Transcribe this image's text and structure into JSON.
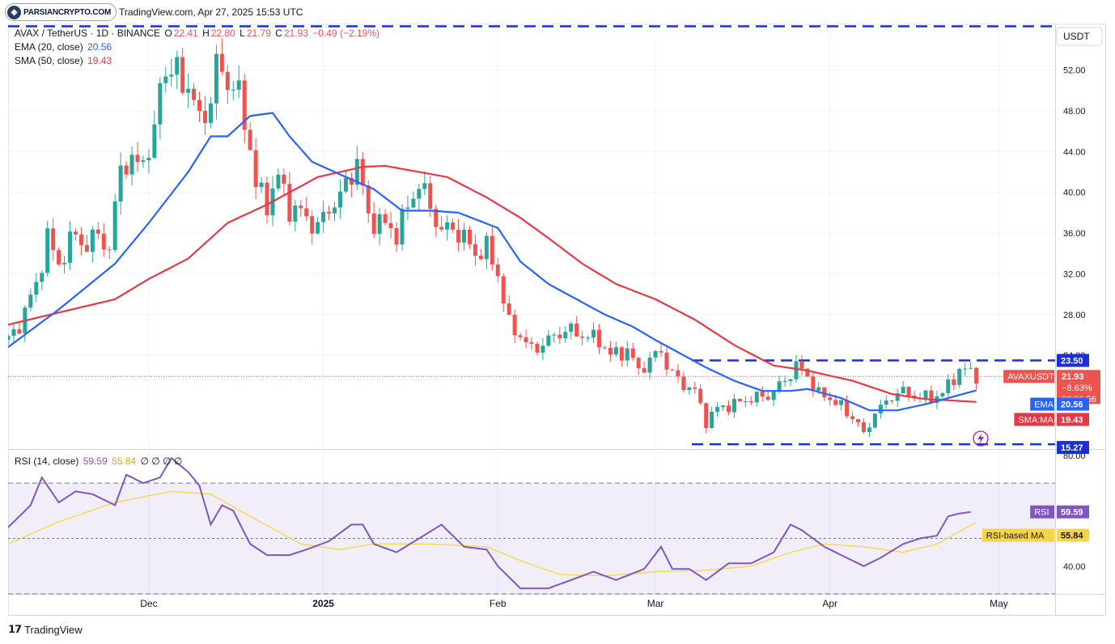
{
  "watermark": {
    "brand": "PARSIANCRYPTO.COM"
  },
  "header": {
    "title": "TradingView.com, Apr 27, 2025 15:53 UTC"
  },
  "legend": {
    "symbol": "AVAX / TetherUS · 1D · BINANCE",
    "o_label": "O",
    "o_val": "22.41",
    "h_label": "H",
    "h_val": "22.80",
    "l_label": "L",
    "l_val": "21.79",
    "c_label": "C",
    "c_val": "21.93",
    "change": "−0.49 (−2.19%)",
    "ema_label": "EMA (20, close)",
    "ema_val": "20.56",
    "sma_label": "SMA (50, close)",
    "sma_val": "19.43",
    "rsi_label": "RSI (14, close)",
    "rsi_val": "59.59",
    "rsi_ma_val": "55.84",
    "rsi_extra": "∅ ∅ ∅ ∅"
  },
  "price_axis": {
    "currency": "USDT"
  },
  "badges": {
    "symbol": "AVAXUSDT",
    "price": "21.93",
    "pct": "−8.63%",
    "countdown": "08:06:56",
    "ema_name": "EMA",
    "ema_val": "20.56",
    "sma_name": "SMA:MA",
    "sma_val": "19.43",
    "res_val": "23.50",
    "sup_val": "15.27",
    "rsi_name": "RSI",
    "rsi_val": "59.59",
    "rsi_ma_name": "RSI-based MA",
    "rsi_ma_val": "55.84"
  },
  "footer": {
    "brand": "TradingView"
  },
  "colors": {
    "up": "#26a69a",
    "down": "#ef5350",
    "ema": "#2962ff",
    "sma": "#e63946",
    "rsi": "#7e57c2",
    "rsi_ma": "#f5d547",
    "level": "#1b2fd6"
  },
  "chart_data": [
    {
      "type": "candlestick",
      "title": "AVAX / TetherUS · 1D · BINANCE",
      "ylabel": "USDT",
      "ylim": [
        14.8,
        56.5
      ],
      "y_ticks": [
        "52.00",
        "48.00",
        "44.00",
        "40.00",
        "36.00",
        "32.00",
        "28.00",
        "24.00"
      ],
      "x_ticks": [
        "Dec",
        "2025",
        "Feb",
        "Mar",
        "Apr",
        "May"
      ],
      "x_tick_dates": [
        "2024-12-01",
        "2025-01-01",
        "2025-02-01",
        "2025-03-01",
        "2025-04-01",
        "2025-05-01"
      ],
      "x_range": [
        "2024-11-06",
        "2025-05-11"
      ],
      "levels": [
        {
          "name": "resistance-top",
          "value": 56.3
        },
        {
          "name": "resistance",
          "value": 23.5
        },
        {
          "name": "support",
          "value": 15.27
        }
      ],
      "last_close": 21.93,
      "series": [
        {
          "name": "AVAXUSDT",
          "style": "candles",
          "anchors": [
            [
              "2024-11-06",
              25.5
            ],
            [
              "2024-11-08",
              27.0
            ],
            [
              "2024-11-11",
              31.0
            ],
            [
              "2024-11-13",
              35.5
            ],
            [
              "2024-11-15",
              33.0
            ],
            [
              "2024-11-18",
              36.0
            ],
            [
              "2024-11-20",
              34.5
            ],
            [
              "2024-11-22",
              36.2
            ],
            [
              "2024-11-24",
              34.0
            ],
            [
              "2024-11-26",
              43.0
            ],
            [
              "2024-11-28",
              42.5
            ],
            [
              "2024-11-30",
              43.5
            ],
            [
              "2024-12-02",
              45.0
            ],
            [
              "2024-12-03",
              51.5
            ],
            [
              "2024-12-05",
              52.0
            ],
            [
              "2024-12-08",
              50.5
            ],
            [
              "2024-12-10",
              47.0
            ],
            [
              "2024-12-12",
              49.0
            ],
            [
              "2024-12-13",
              52.5
            ],
            [
              "2024-12-15",
              51.0
            ],
            [
              "2024-12-17",
              49.5
            ],
            [
              "2024-12-19",
              44.5
            ],
            [
              "2024-12-20",
              40.5
            ],
            [
              "2024-12-22",
              39.0
            ],
            [
              "2024-12-24",
              41.5
            ],
            [
              "2024-12-26",
              38.5
            ],
            [
              "2024-12-28",
              38.0
            ],
            [
              "2024-12-31",
              36.5
            ],
            [
              "2025-01-02",
              38.5
            ],
            [
              "2025-01-04",
              39.5
            ],
            [
              "2025-01-06",
              42.0
            ],
            [
              "2025-01-07",
              43.0
            ],
            [
              "2025-01-09",
              37.5
            ],
            [
              "2025-01-12",
              36.8
            ],
            [
              "2025-01-14",
              36.0
            ],
            [
              "2025-01-16",
              38.5
            ],
            [
              "2025-01-18",
              41.0
            ],
            [
              "2025-01-20",
              38.5
            ],
            [
              "2025-01-22",
              36.2
            ],
            [
              "2025-01-24",
              36.5
            ],
            [
              "2025-01-26",
              35.5
            ],
            [
              "2025-01-28",
              34.0
            ],
            [
              "2025-01-30",
              34.5
            ],
            [
              "2025-02-01",
              32.0
            ],
            [
              "2025-02-03",
              27.0
            ],
            [
              "2025-02-05",
              26.0
            ],
            [
              "2025-02-07",
              24.5
            ],
            [
              "2025-02-10",
              25.5
            ],
            [
              "2025-02-13",
              26.5
            ],
            [
              "2025-02-16",
              26.0
            ],
            [
              "2025-02-19",
              25.5
            ],
            [
              "2025-02-21",
              24.0
            ],
            [
              "2025-02-24",
              24.5
            ],
            [
              "2025-02-26",
              22.5
            ],
            [
              "2025-02-28",
              23.5
            ],
            [
              "2025-03-02",
              24.5
            ],
            [
              "2025-03-03",
              23.0
            ],
            [
              "2025-03-05",
              21.5
            ],
            [
              "2025-03-08",
              20.5
            ],
            [
              "2025-03-10",
              17.5
            ],
            [
              "2025-03-12",
              18.8
            ],
            [
              "2025-03-15",
              19.2
            ],
            [
              "2025-03-18",
              19.8
            ],
            [
              "2025-03-21",
              20.0
            ],
            [
              "2025-03-24",
              21.5
            ],
            [
              "2025-03-26",
              23.0
            ],
            [
              "2025-03-28",
              22.0
            ],
            [
              "2025-03-30",
              20.2
            ],
            [
              "2025-04-02",
              19.5
            ],
            [
              "2025-04-04",
              18.3
            ],
            [
              "2025-04-06",
              17.5
            ],
            [
              "2025-04-07",
              16.0
            ],
            [
              "2025-04-09",
              18.5
            ],
            [
              "2025-04-11",
              19.3
            ],
            [
              "2025-04-13",
              20.5
            ],
            [
              "2025-04-16",
              20.0
            ],
            [
              "2025-04-19",
              19.8
            ],
            [
              "2025-04-21",
              20.3
            ],
            [
              "2025-04-22",
              21.0
            ],
            [
              "2025-04-24",
              22.6
            ],
            [
              "2025-04-26",
              22.4
            ],
            [
              "2025-04-27",
              21.93
            ]
          ]
        },
        {
          "name": "EMA (20, close)",
          "style": "line",
          "anchors": [
            [
              "2024-11-06",
              24.8
            ],
            [
              "2024-11-15",
              28.5
            ],
            [
              "2024-11-25",
              33.0
            ],
            [
              "2024-12-01",
              37.0
            ],
            [
              "2024-12-08",
              42.0
            ],
            [
              "2024-12-12",
              45.5
            ],
            [
              "2024-12-15",
              45.5
            ],
            [
              "2024-12-19",
              47.5
            ],
            [
              "2024-12-23",
              47.8
            ],
            [
              "2024-12-26",
              45.5
            ],
            [
              "2024-12-30",
              43.0
            ],
            [
              "2025-01-05",
              41.5
            ],
            [
              "2025-01-10",
              40.3
            ],
            [
              "2025-01-15",
              38.2
            ],
            [
              "2025-01-20",
              38.2
            ],
            [
              "2025-01-25",
              38.0
            ],
            [
              "2025-02-01",
              36.5
            ],
            [
              "2025-02-05",
              33.2
            ],
            [
              "2025-02-10",
              31.0
            ],
            [
              "2025-02-15",
              29.5
            ],
            [
              "2025-02-20",
              28.0
            ],
            [
              "2025-02-25",
              26.8
            ],
            [
              "2025-03-01",
              25.5
            ],
            [
              "2025-03-05",
              24.3
            ],
            [
              "2025-03-10",
              22.8
            ],
            [
              "2025-03-15",
              21.5
            ],
            [
              "2025-03-20",
              20.5
            ],
            [
              "2025-03-25",
              20.5
            ],
            [
              "2025-03-28",
              20.7
            ],
            [
              "2025-04-03",
              19.8
            ],
            [
              "2025-04-08",
              18.6
            ],
            [
              "2025-04-13",
              18.6
            ],
            [
              "2025-04-18",
              19.2
            ],
            [
              "2025-04-22",
              19.8
            ],
            [
              "2025-04-27",
              20.56
            ]
          ]
        },
        {
          "name": "SMA (50, close)",
          "style": "line",
          "anchors": [
            [
              "2024-11-06",
              27.0
            ],
            [
              "2024-11-15",
              28.2
            ],
            [
              "2024-11-25",
              29.5
            ],
            [
              "2024-12-01",
              31.5
            ],
            [
              "2024-12-08",
              33.5
            ],
            [
              "2024-12-15",
              37.0
            ],
            [
              "2024-12-22",
              38.8
            ],
            [
              "2024-12-31",
              41.5
            ],
            [
              "2025-01-08",
              42.5
            ],
            [
              "2025-01-12",
              42.6
            ],
            [
              "2025-01-18",
              42.0
            ],
            [
              "2025-01-23",
              41.5
            ],
            [
              "2025-01-30",
              39.5
            ],
            [
              "2025-02-05",
              37.5
            ],
            [
              "2025-02-10",
              35.5
            ],
            [
              "2025-02-16",
              33.0
            ],
            [
              "2025-02-22",
              31.0
            ],
            [
              "2025-03-01",
              29.5
            ],
            [
              "2025-03-08",
              27.5
            ],
            [
              "2025-03-15",
              25.0
            ],
            [
              "2025-03-22",
              23.0
            ],
            [
              "2025-03-28",
              22.5
            ],
            [
              "2025-04-05",
              21.5
            ],
            [
              "2025-04-12",
              20.2
            ],
            [
              "2025-04-18",
              19.7
            ],
            [
              "2025-04-27",
              19.43
            ]
          ]
        }
      ]
    },
    {
      "type": "line",
      "title": "RSI (14, close)",
      "ylim": [
        30,
        82
      ],
      "y_ticks": [
        "80.00",
        "40.00"
      ],
      "bands": [
        70,
        50,
        30
      ],
      "series": [
        {
          "name": "RSI",
          "values_anchored": [
            [
              "2024-11-06",
              54
            ],
            [
              "2024-11-10",
              62
            ],
            [
              "2024-11-12",
              72
            ],
            [
              "2024-11-15",
              63
            ],
            [
              "2024-11-18",
              67
            ],
            [
              "2024-11-21",
              66
            ],
            [
              "2024-11-25",
              62
            ],
            [
              "2024-11-27",
              73
            ],
            [
              "2024-11-30",
              70
            ],
            [
              "2024-12-03",
              72
            ],
            [
              "2024-12-05",
              79
            ],
            [
              "2024-12-08",
              74
            ],
            [
              "2024-12-10",
              69
            ],
            [
              "2024-12-12",
              55
            ],
            [
              "2024-12-14",
              62
            ],
            [
              "2024-12-16",
              60
            ],
            [
              "2024-12-19",
              48
            ],
            [
              "2024-12-22",
              44
            ],
            [
              "2024-12-26",
              44
            ],
            [
              "2024-12-29",
              46
            ],
            [
              "2025-01-02",
              49
            ],
            [
              "2025-01-06",
              55
            ],
            [
              "2025-01-08",
              55
            ],
            [
              "2025-01-10",
              48
            ],
            [
              "2025-01-14",
              45
            ],
            [
              "2025-01-18",
              50
            ],
            [
              "2025-01-22",
              55
            ],
            [
              "2025-01-26",
              47
            ],
            [
              "2025-01-30",
              46
            ],
            [
              "2025-02-01",
              40
            ],
            [
              "2025-02-05",
              32
            ],
            [
              "2025-02-10",
              32
            ],
            [
              "2025-02-14",
              35
            ],
            [
              "2025-02-18",
              38
            ],
            [
              "2025-02-22",
              35
            ],
            [
              "2025-02-27",
              39
            ],
            [
              "2025-03-02",
              47
            ],
            [
              "2025-03-04",
              39
            ],
            [
              "2025-03-07",
              39
            ],
            [
              "2025-03-10",
              35
            ],
            [
              "2025-03-14",
              41
            ],
            [
              "2025-03-18",
              41
            ],
            [
              "2025-03-22",
              45
            ],
            [
              "2025-03-25",
              55
            ],
            [
              "2025-03-27",
              53
            ],
            [
              "2025-03-31",
              47
            ],
            [
              "2025-04-04",
              43
            ],
            [
              "2025-04-07",
              40
            ],
            [
              "2025-04-10",
              43
            ],
            [
              "2025-04-14",
              48
            ],
            [
              "2025-04-17",
              50
            ],
            [
              "2025-04-20",
              51
            ],
            [
              "2025-04-22",
              58
            ],
            [
              "2025-04-24",
              59
            ],
            [
              "2025-04-26",
              59.59
            ]
          ]
        },
        {
          "name": "RSI-based MA",
          "values_anchored": [
            [
              "2024-11-06",
              48
            ],
            [
              "2024-11-15",
              56
            ],
            [
              "2024-11-25",
              63
            ],
            [
              "2024-12-05",
              67
            ],
            [
              "2024-12-12",
              66
            ],
            [
              "2024-12-19",
              58
            ],
            [
              "2024-12-28",
              48
            ],
            [
              "2025-01-04",
              46
            ],
            [
              "2025-01-10",
              48
            ],
            [
              "2025-01-20",
              48
            ],
            [
              "2025-01-30",
              47
            ],
            [
              "2025-02-05",
              42
            ],
            [
              "2025-02-12",
              37
            ],
            [
              "2025-02-20",
              36.5
            ],
            [
              "2025-03-01",
              38
            ],
            [
              "2025-03-10",
              38.5
            ],
            [
              "2025-03-18",
              40
            ],
            [
              "2025-03-25",
              45
            ],
            [
              "2025-03-31",
              48
            ],
            [
              "2025-04-07",
              47
            ],
            [
              "2025-04-14",
              45
            ],
            [
              "2025-04-20",
              48
            ],
            [
              "2025-04-27",
              55.84
            ]
          ]
        }
      ]
    }
  ]
}
